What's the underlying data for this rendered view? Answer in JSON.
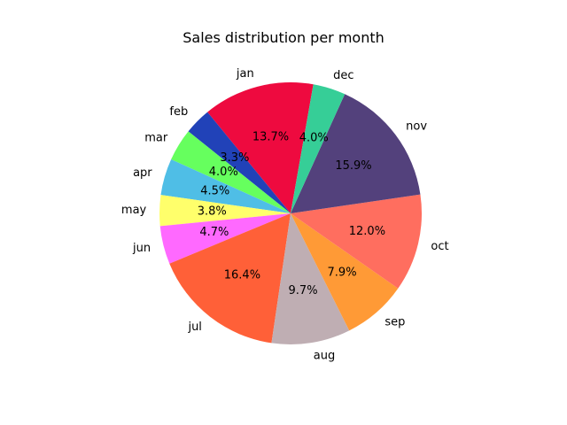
{
  "chart_data": {
    "type": "pie",
    "title": "Sales distribution per month",
    "categories": [
      "jan",
      "feb",
      "mar",
      "apr",
      "may",
      "jun",
      "jul",
      "aug",
      "sep",
      "oct",
      "nov",
      "dec"
    ],
    "values": [
      13.7,
      3.3,
      4.0,
      4.5,
      3.8,
      4.7,
      16.4,
      9.7,
      7.9,
      12.0,
      15.9,
      4.0
    ],
    "value_labels": [
      "13.7%",
      "3.3%",
      "4.0%",
      "4.5%",
      "3.8%",
      "4.7%",
      "16.4%",
      "9.7%",
      "7.9%",
      "12.0%",
      "15.9%",
      "4.0%"
    ],
    "colors": [
      "#EE0A3F",
      "#2142B8",
      "#66FF5E",
      "#4FBEE6",
      "#FFFF6B",
      "#FF69FF",
      "#FF6038",
      "#BFAEB3",
      "#FF9A36",
      "#FF6E5F",
      "#53417C",
      "#36CE97"
    ],
    "start_angle_deg": 80,
    "direction": "counterclockwise",
    "legend": "none"
  }
}
